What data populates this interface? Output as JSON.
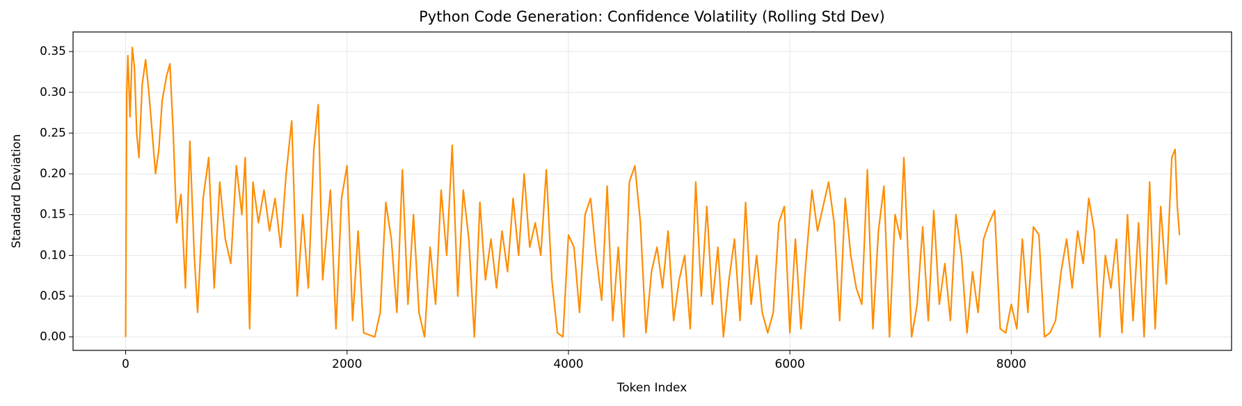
{
  "chart_data": {
    "type": "line",
    "title": "Python Code Generation: Confidence Volatility (Rolling Std Dev)",
    "x_label": "Token Index",
    "y_label": "Standard Deviation",
    "xlim": [
      -475,
      9990
    ],
    "ylim": [
      -0.0165,
      0.374
    ],
    "xticks": [
      0,
      2000,
      4000,
      6000,
      8000
    ],
    "yticks": [
      {
        "value": 0,
        "label": "0.00"
      },
      {
        "value": 0.05,
        "label": "0.05"
      },
      {
        "value": 0.1,
        "label": "0.10"
      },
      {
        "value": 0.15,
        "label": "0.15"
      },
      {
        "value": 0.2,
        "label": "0.20"
      },
      {
        "value": 0.25,
        "label": "0.25"
      },
      {
        "value": 0.3,
        "label": "0.30"
      },
      {
        "value": 0.35,
        "label": "0.35"
      }
    ],
    "grid": true,
    "x": [
      0,
      10,
      20,
      40,
      60,
      80,
      100,
      120,
      150,
      180,
      210,
      240,
      270,
      300,
      330,
      370,
      400,
      430,
      460,
      500,
      540,
      580,
      620,
      650,
      700,
      750,
      800,
      850,
      900,
      950,
      1000,
      1050,
      1080,
      1120,
      1150,
      1200,
      1250,
      1300,
      1350,
      1400,
      1450,
      1500,
      1550,
      1600,
      1650,
      1700,
      1740,
      1780,
      1850,
      1900,
      1950,
      2000,
      2050,
      2100,
      2150,
      2250,
      2300,
      2350,
      2400,
      2450,
      2500,
      2550,
      2600,
      2650,
      2700,
      2750,
      2800,
      2850,
      2900,
      2950,
      3000,
      3050,
      3100,
      3150,
      3200,
      3250,
      3300,
      3350,
      3400,
      3450,
      3500,
      3550,
      3600,
      3650,
      3700,
      3750,
      3800,
      3850,
      3900,
      3950,
      4000,
      4050,
      4100,
      4150,
      4200,
      4250,
      4300,
      4350,
      4400,
      4450,
      4500,
      4550,
      4600,
      4650,
      4700,
      4750,
      4800,
      4850,
      4900,
      4950,
      5000,
      5050,
      5100,
      5150,
      5200,
      5250,
      5300,
      5350,
      5400,
      5450,
      5500,
      5550,
      5600,
      5650,
      5700,
      5750,
      5800,
      5850,
      5900,
      5950,
      6000,
      6050,
      6100,
      6150,
      6200,
      6250,
      6300,
      6350,
      6400,
      6450,
      6500,
      6550,
      6600,
      6650,
      6700,
      6750,
      6800,
      6850,
      6900,
      6950,
      7000,
      7030,
      7100,
      7150,
      7200,
      7250,
      7300,
      7350,
      7400,
      7450,
      7500,
      7550,
      7600,
      7650,
      7700,
      7750,
      7800,
      7850,
      7900,
      7950,
      8000,
      8050,
      8100,
      8150,
      8200,
      8250,
      8300,
      8350,
      8400,
      8450,
      8500,
      8550,
      8600,
      8650,
      8700,
      8750,
      8800,
      8850,
      8900,
      8950,
      9000,
      9050,
      9100,
      9150,
      9200,
      9250,
      9300,
      9350,
      9400,
      9450,
      9480,
      9500,
      9520
    ],
    "series": [
      {
        "name": "Rolling Std Dev",
        "color": "#ff8c00",
        "values": [
          0.0,
          0.3,
          0.345,
          0.27,
          0.355,
          0.33,
          0.25,
          0.22,
          0.31,
          0.34,
          0.3,
          0.25,
          0.2,
          0.23,
          0.29,
          0.32,
          0.335,
          0.25,
          0.14,
          0.175,
          0.06,
          0.24,
          0.1,
          0.03,
          0.17,
          0.22,
          0.06,
          0.19,
          0.12,
          0.09,
          0.21,
          0.15,
          0.22,
          0.01,
          0.19,
          0.14,
          0.18,
          0.13,
          0.17,
          0.11,
          0.2,
          0.265,
          0.05,
          0.15,
          0.06,
          0.23,
          0.285,
          0.07,
          0.18,
          0.01,
          0.17,
          0.21,
          0.02,
          0.13,
          0.005,
          0.0,
          0.03,
          0.165,
          0.12,
          0.03,
          0.205,
          0.04,
          0.15,
          0.03,
          0.0,
          0.11,
          0.04,
          0.18,
          0.1,
          0.235,
          0.05,
          0.18,
          0.12,
          0.0,
          0.165,
          0.07,
          0.12,
          0.06,
          0.13,
          0.08,
          0.17,
          0.1,
          0.2,
          0.11,
          0.14,
          0.1,
          0.205,
          0.07,
          0.005,
          0.0,
          0.125,
          0.11,
          0.03,
          0.15,
          0.17,
          0.1,
          0.045,
          0.185,
          0.02,
          0.11,
          0.0,
          0.19,
          0.21,
          0.14,
          0.005,
          0.08,
          0.11,
          0.06,
          0.13,
          0.02,
          0.07,
          0.1,
          0.01,
          0.19,
          0.05,
          0.16,
          0.04,
          0.11,
          0.0,
          0.07,
          0.12,
          0.02,
          0.165,
          0.04,
          0.1,
          0.03,
          0.005,
          0.03,
          0.14,
          0.16,
          0.005,
          0.12,
          0.01,
          0.1,
          0.18,
          0.13,
          0.16,
          0.19,
          0.14,
          0.02,
          0.17,
          0.1,
          0.06,
          0.04,
          0.205,
          0.01,
          0.13,
          0.185,
          0.0,
          0.15,
          0.12,
          0.22,
          0.0,
          0.04,
          0.135,
          0.02,
          0.155,
          0.04,
          0.09,
          0.02,
          0.15,
          0.1,
          0.005,
          0.08,
          0.03,
          0.12,
          0.14,
          0.155,
          0.01,
          0.005,
          0.04,
          0.01,
          0.12,
          0.03,
          0.135,
          0.125,
          0.0,
          0.005,
          0.02,
          0.08,
          0.12,
          0.06,
          0.13,
          0.09,
          0.17,
          0.13,
          0.0,
          0.1,
          0.06,
          0.12,
          0.005,
          0.15,
          0.02,
          0.14,
          0.0,
          0.19,
          0.01,
          0.16,
          0.065,
          0.22,
          0.23,
          0.16,
          0.125
        ]
      }
    ]
  }
}
